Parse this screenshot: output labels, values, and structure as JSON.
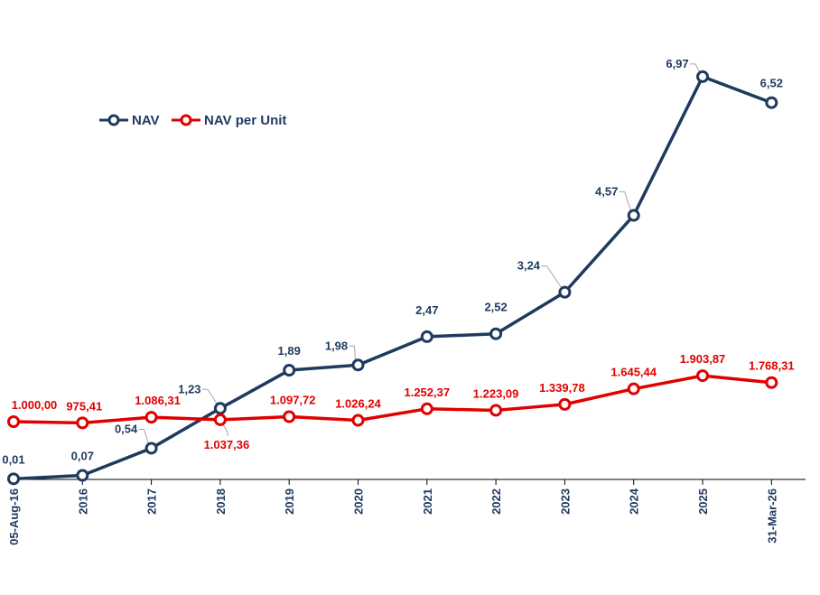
{
  "chart_data": {
    "type": "line",
    "categories": [
      "05-Aug-16",
      "2016",
      "2017",
      "2018",
      "2019",
      "2020",
      "2021",
      "2022",
      "2023",
      "2024",
      "2025",
      "31-Mar-26"
    ],
    "series": [
      {
        "name": "NAV",
        "color": "#1f3a5f",
        "values": [
          0.01,
          0.07,
          0.54,
          1.23,
          1.89,
          1.98,
          2.47,
          2.52,
          3.24,
          4.57,
          6.97,
          6.52
        ],
        "labels": [
          "0,01",
          "0,07",
          "0,54",
          "1,23",
          "1,89",
          "1,98",
          "2,47",
          "2,52",
          "3,24",
          "4,57",
          "6,97",
          "6,52"
        ]
      },
      {
        "name": "NAV per Unit",
        "color": "#e00000",
        "values": [
          1000.0,
          975.41,
          1086.31,
          1037.36,
          1097.72,
          1026.24,
          1252.37,
          1223.09,
          1339.78,
          1645.44,
          1903.87,
          1768.31
        ],
        "labels": [
          "1.000,00",
          "975,41",
          "1.086,31",
          "1.037,36",
          "1.097,72",
          "1.026,24",
          "1.252,37",
          "1.223,09",
          "1.339,78",
          "1.645,44",
          "1.903,87",
          "1.768,31"
        ]
      }
    ],
    "legend_position": "top-left",
    "grid": false
  }
}
